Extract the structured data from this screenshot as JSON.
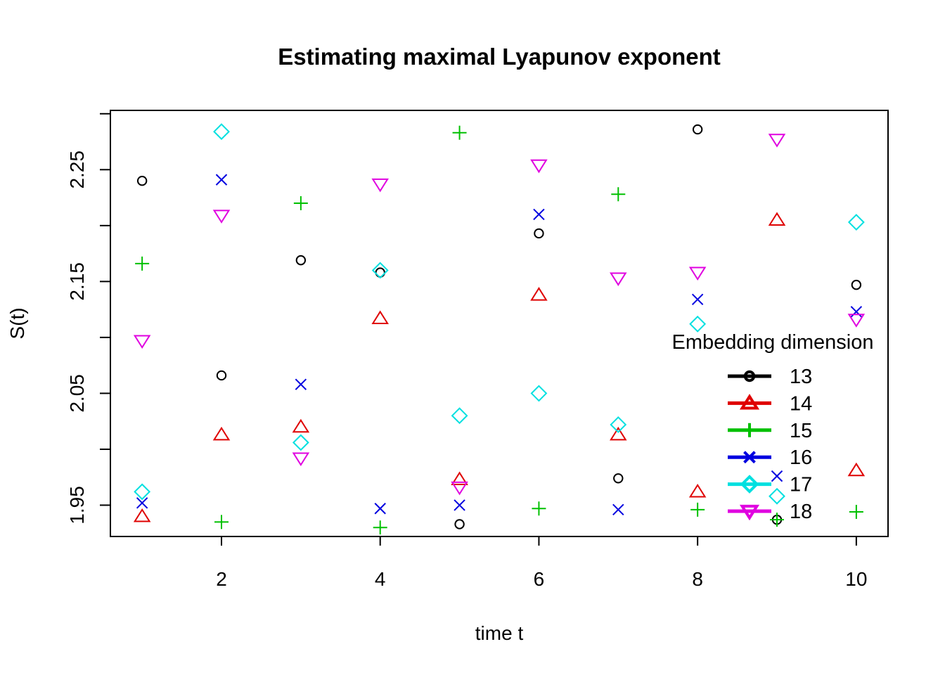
{
  "chart_data": {
    "type": "scatter",
    "title": "Estimating maximal Lyapunov exponent",
    "xlabel": "time t",
    "ylabel": "S(t)",
    "xlim": [
      0.6,
      10.4
    ],
    "ylim": [
      1.922,
      2.303
    ],
    "x_ticks": [
      2,
      4,
      6,
      8,
      10
    ],
    "x_tick_labels": [
      "2",
      "4",
      "6",
      "8",
      "10"
    ],
    "y_ticks": [
      1.95,
      2.0,
      2.05,
      2.1,
      2.15,
      2.2,
      2.25,
      2.3
    ],
    "y_tick_labels": [
      "1.95",
      "",
      "2.05",
      "",
      "2.15",
      "",
      "2.25",
      ""
    ],
    "grid": false,
    "legend": {
      "title": "Embedding dimension",
      "position": "right"
    },
    "x": [
      1,
      2,
      3,
      4,
      5,
      6,
      7,
      8,
      9,
      10
    ],
    "series": [
      {
        "name": "13",
        "color": "#000000",
        "marker": "circle",
        "values": [
          2.24,
          2.066,
          2.169,
          2.158,
          1.933,
          2.193,
          1.974,
          2.286,
          1.937,
          2.147
        ]
      },
      {
        "name": "14",
        "color": "#df0000",
        "marker": "triangle-up",
        "values": [
          1.94,
          2.013,
          2.02,
          2.117,
          1.973,
          2.138,
          2.013,
          1.962,
          2.205,
          1.981
        ]
      },
      {
        "name": "15",
        "color": "#00c000",
        "marker": "plus",
        "values": [
          2.166,
          1.935,
          2.22,
          1.93,
          2.283,
          1.947,
          2.228,
          1.946,
          1.937,
          1.944
        ]
      },
      {
        "name": "16",
        "color": "#0000e0",
        "marker": "cross",
        "values": [
          1.952,
          2.241,
          2.058,
          1.947,
          1.95,
          2.21,
          1.946,
          2.134,
          1.976,
          2.123
        ]
      },
      {
        "name": "17",
        "color": "#00e0e0",
        "marker": "diamond",
        "values": [
          1.962,
          2.284,
          2.006,
          2.16,
          2.03,
          2.05,
          2.022,
          2.112,
          1.958,
          2.203
        ]
      },
      {
        "name": "18",
        "color": "#e000e0",
        "marker": "triangle-down",
        "values": [
          2.097,
          2.209,
          1.992,
          2.237,
          1.966,
          2.254,
          2.153,
          2.158,
          2.277,
          2.116
        ]
      }
    ]
  }
}
